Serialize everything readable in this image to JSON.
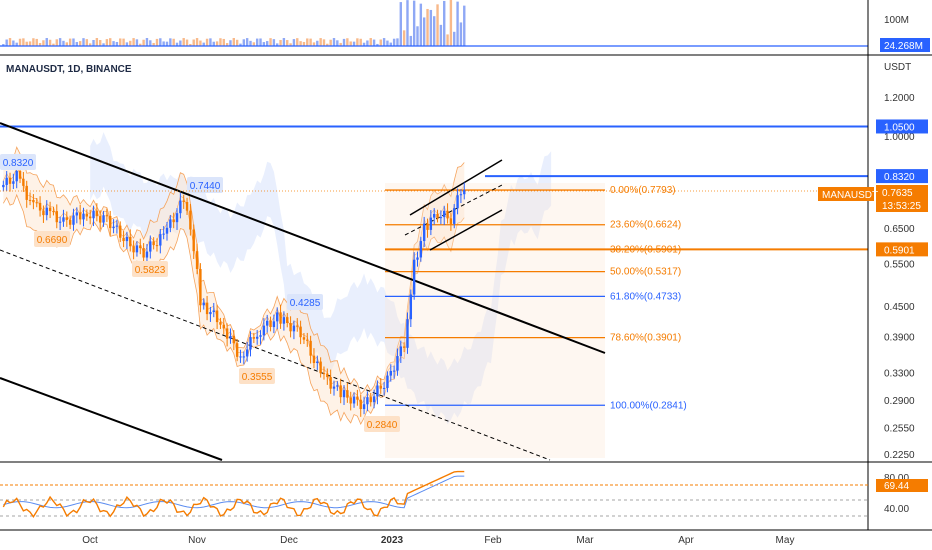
{
  "symbol_title": "MANAUSDT, 1D, BINANCE",
  "colors": {
    "up": "#2962ff",
    "down": "#f57c00",
    "fib_orange": "#f57c00",
    "fib_blue": "#2962ff",
    "trend": "#000000",
    "band_fill": "#fde7d3",
    "cloud_fill": "#dbe5fb",
    "rsi_line": "#f57c00",
    "rsi_ma": "#5b8cf0"
  },
  "volume_axis": {
    "labels": [
      "100M"
    ],
    "current_badge": "24.268M"
  },
  "price_axis": {
    "unit_label": "USDT",
    "scale": "log",
    "range": [
      0.21,
      1.6
    ],
    "ticks": [
      "1.2000",
      "1.0000",
      "0.6500",
      "0.5500",
      "0.4500",
      "0.3900",
      "0.3300",
      "0.2900",
      "0.2550",
      "0.2250"
    ],
    "badges": [
      {
        "text": "1.0500",
        "value": 1.05,
        "kind": "blue"
      },
      {
        "text": "0.8320",
        "value": 0.832,
        "kind": "blue"
      },
      {
        "text": "0.7635",
        "value": 0.7635,
        "kind": "orange"
      },
      {
        "text": "0.5901",
        "value": 0.5901,
        "kind": "blue"
      }
    ],
    "symbol_badge": "MANAUSDT",
    "countdown": "13:53:25"
  },
  "horizontal_levels": [
    {
      "value": 1.05,
      "color": "#2962ff"
    },
    {
      "value": 0.832,
      "color": "#2962ff"
    },
    {
      "value": 0.5901,
      "color": "#f57c00"
    }
  ],
  "fib_levels": [
    {
      "label": "0.00%(0.7793)",
      "value": 0.7793,
      "color": "#f57c00"
    },
    {
      "label": "23.60%(0.6624)",
      "value": 0.6624,
      "color": "#f57c00"
    },
    {
      "label": "38.20%(0.5901)",
      "value": 0.5901,
      "color": "#f57c00"
    },
    {
      "label": "50.00%(0.5317)",
      "value": 0.5317,
      "color": "#f57c00"
    },
    {
      "label": "61.80%(0.4733)",
      "value": 0.4733,
      "color": "#2962ff"
    },
    {
      "label": "78.60%(0.3901)",
      "value": 0.3901,
      "color": "#f57c00"
    },
    {
      "label": "100.00%(0.2841)",
      "value": 0.2841,
      "color": "#2962ff"
    }
  ],
  "price_labels": [
    {
      "text": "0.8320",
      "value": 0.832,
      "kind": "high"
    },
    {
      "text": "0.6690",
      "value": 0.669,
      "kind": "low"
    },
    {
      "text": "0.5823",
      "value": 0.5823,
      "kind": "low"
    },
    {
      "text": "0.7440",
      "value": 0.744,
      "kind": "high"
    },
    {
      "text": "0.4285",
      "value": 0.4285,
      "kind": "high"
    },
    {
      "text": "0.3555",
      "value": 0.3555,
      "kind": "low"
    },
    {
      "text": "0.2840",
      "value": 0.284,
      "kind": "low"
    }
  ],
  "time_axis": {
    "labels": [
      "Oct",
      "Nov",
      "Dec",
      "2023",
      "Feb",
      "Mar",
      "Apr",
      "May"
    ]
  },
  "rsi": {
    "ticks": [
      "80.00",
      "40.00"
    ],
    "current": "69.44",
    "current_value": 69.44
  },
  "chart_data": {
    "type": "candlestick",
    "title": "MANAUSDT, 1D, BINANCE",
    "y_scale": "log",
    "close_series": [
      {
        "date": "2022-09-11",
        "close": 0.79
      },
      {
        "date": "2022-09-16",
        "close": 0.832
      },
      {
        "date": "2022-09-21",
        "close": 0.72
      },
      {
        "date": "2022-09-26",
        "close": 0.7
      },
      {
        "date": "2022-09-30",
        "close": 0.669
      },
      {
        "date": "2022-10-06",
        "close": 0.7
      },
      {
        "date": "2022-10-13",
        "close": 0.68
      },
      {
        "date": "2022-10-20",
        "close": 0.6
      },
      {
        "date": "2022-10-24",
        "close": 0.5823
      },
      {
        "date": "2022-10-30",
        "close": 0.63
      },
      {
        "date": "2022-11-05",
        "close": 0.744
      },
      {
        "date": "2022-11-08",
        "close": 0.6
      },
      {
        "date": "2022-11-10",
        "close": 0.46
      },
      {
        "date": "2022-11-16",
        "close": 0.42
      },
      {
        "date": "2022-11-22",
        "close": 0.3555
      },
      {
        "date": "2022-11-27",
        "close": 0.4
      },
      {
        "date": "2022-12-03",
        "close": 0.4285
      },
      {
        "date": "2022-12-10",
        "close": 0.4
      },
      {
        "date": "2022-12-16",
        "close": 0.33
      },
      {
        "date": "2022-12-22",
        "close": 0.3
      },
      {
        "date": "2022-12-29",
        "close": 0.284
      },
      {
        "date": "2023-01-05",
        "close": 0.32
      },
      {
        "date": "2023-01-10",
        "close": 0.38
      },
      {
        "date": "2023-01-13",
        "close": 0.55
      },
      {
        "date": "2023-01-16",
        "close": 0.65
      },
      {
        "date": "2023-01-20",
        "close": 0.7
      },
      {
        "date": "2023-01-24",
        "close": 0.68
      },
      {
        "date": "2023-01-27",
        "close": 0.7793
      },
      {
        "date": "2023-01-28",
        "close": 0.7635
      }
    ],
    "indicators": [
      "Bollinger Bands",
      "Ichimoku Cloud",
      "Fibonacci Retracement",
      "Volume",
      "RSI"
    ],
    "grid": false
  }
}
